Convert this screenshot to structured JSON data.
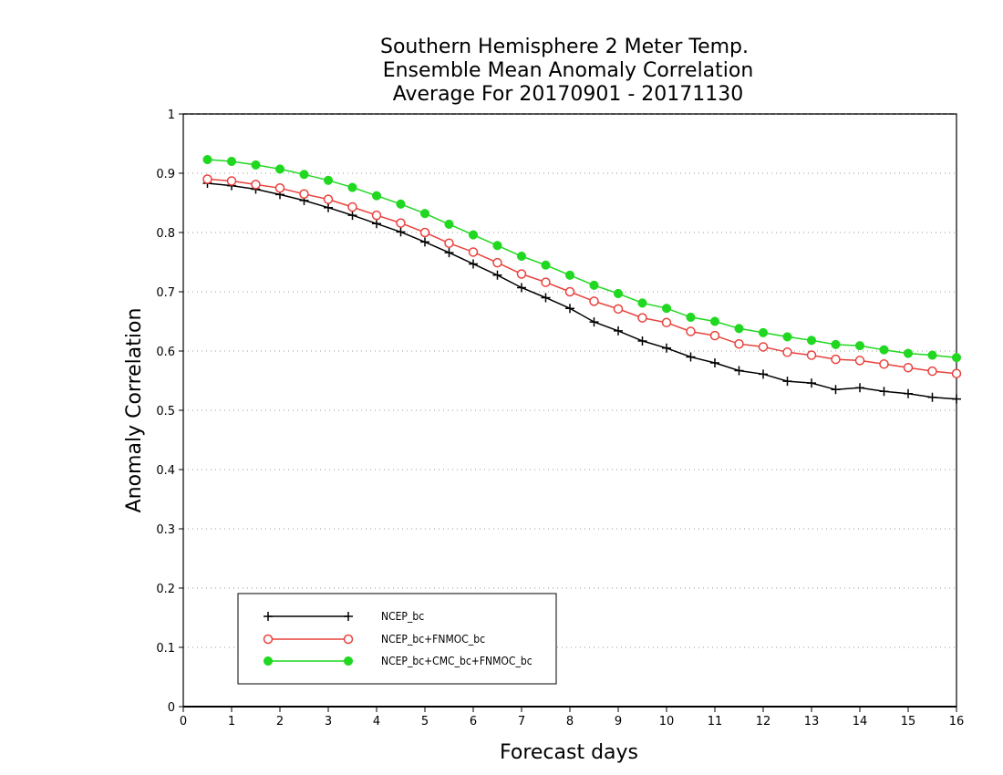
{
  "chart_data": {
    "type": "line",
    "title": [
      "Southern Hemisphere 2 Meter Temp.",
      "Ensemble Mean Anomaly Correlation",
      "Average For 20170901 - 20171130"
    ],
    "xlabel": "Forecast days",
    "ylabel": "Anomaly Correlation",
    "xlim": [
      0,
      16
    ],
    "ylim": [
      0,
      1
    ],
    "xticks": [
      "0",
      "1",
      "2",
      "3",
      "4",
      "5",
      "6",
      "7",
      "8",
      "9",
      "10",
      "11",
      "12",
      "13",
      "14",
      "15",
      "16"
    ],
    "yticks": [
      "0",
      "0.1",
      "0.2",
      "0.3",
      "0.4",
      "0.5",
      "0.6",
      "0.7",
      "0.8",
      "0.9",
      "1"
    ],
    "grid": true,
    "legend_position": "bottom-left",
    "x": [
      0.5,
      1,
      1.5,
      2,
      2.5,
      3,
      3.5,
      4,
      4.5,
      5,
      5.5,
      6,
      6.5,
      7,
      7.5,
      8,
      8.5,
      9,
      9.5,
      10,
      10.5,
      11,
      11.5,
      12,
      12.5,
      13,
      13.5,
      14,
      14.5,
      15,
      15.5,
      16
    ],
    "series": [
      {
        "name": "NCEP_bc",
        "color": "#000000",
        "marker": "plus",
        "values": [
          0.883,
          0.879,
          0.873,
          0.864,
          0.854,
          0.842,
          0.829,
          0.815,
          0.801,
          0.784,
          0.766,
          0.747,
          0.728,
          0.707,
          0.69,
          0.672,
          0.649,
          0.634,
          0.617,
          0.605,
          0.59,
          0.58,
          0.567,
          0.561,
          0.549,
          0.546,
          0.535,
          0.538,
          0.532,
          0.528,
          0.522,
          0.519
        ]
      },
      {
        "name": "NCEP_bc+FNMOC_bc",
        "color": "#e8413c",
        "marker": "open-circle",
        "values": [
          0.89,
          0.887,
          0.881,
          0.875,
          0.865,
          0.856,
          0.843,
          0.829,
          0.816,
          0.8,
          0.782,
          0.767,
          0.749,
          0.73,
          0.716,
          0.7,
          0.684,
          0.671,
          0.656,
          0.648,
          0.633,
          0.626,
          0.612,
          0.607,
          0.598,
          0.593,
          0.586,
          0.584,
          0.578,
          0.572,
          0.566,
          0.562
        ]
      },
      {
        "name": "NCEP_bc+CMC_bc+FNMOC_bc",
        "color": "#1fd81f",
        "marker": "filled-circle",
        "values": [
          0.923,
          0.92,
          0.914,
          0.907,
          0.898,
          0.888,
          0.876,
          0.862,
          0.848,
          0.832,
          0.814,
          0.796,
          0.778,
          0.76,
          0.745,
          0.728,
          0.711,
          0.697,
          0.681,
          0.672,
          0.657,
          0.65,
          0.638,
          0.631,
          0.624,
          0.618,
          0.611,
          0.609,
          0.602,
          0.596,
          0.593,
          0.589
        ]
      }
    ]
  }
}
